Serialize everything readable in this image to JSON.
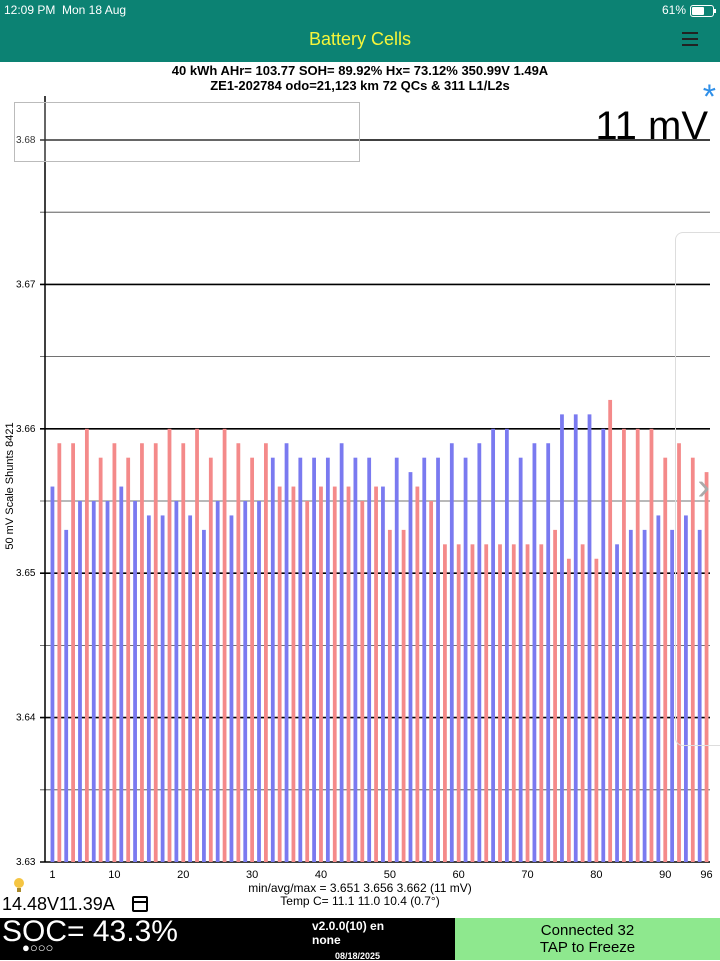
{
  "status_bar": {
    "time": "12:09 PM",
    "date": "Mon 18 Aug",
    "battery_percent": "61%"
  },
  "nav": {
    "title": "Battery Cells"
  },
  "summary": {
    "line1": "40 kWh  AHr= 103.77  SOH= 89.92%   Hx= 73.12%   350.99V 1.49A",
    "line2": "ZE1-202784 odo=21,123 km  72 QCs & 311 L1/L2s"
  },
  "mv_label": "11 mV",
  "star_icon": "asterisk-icon",
  "chart_data": {
    "type": "bar",
    "ylabel": "50 mV Scale   Shunts 8421",
    "ylim": [
      3.63,
      3.68
    ],
    "y_ticks": [
      "3.68",
      "3.67",
      "3.66",
      "3.65",
      "3.64",
      "3.63"
    ],
    "x_ticks": [
      1,
      10,
      20,
      30,
      40,
      50,
      60,
      70,
      80,
      90,
      96
    ],
    "colors": {
      "odd": "#7a7af0",
      "even": "#f48a8a"
    },
    "values": [
      3.656,
      3.659,
      3.653,
      3.659,
      3.655,
      3.66,
      3.655,
      3.658,
      3.655,
      3.659,
      3.656,
      3.658,
      3.655,
      3.659,
      3.654,
      3.659,
      3.654,
      3.66,
      3.655,
      3.659,
      3.654,
      3.66,
      3.653,
      3.658,
      3.655,
      3.66,
      3.654,
      3.659,
      3.655,
      3.658,
      3.655,
      3.659,
      3.658,
      3.656,
      3.659,
      3.656,
      3.658,
      3.655,
      3.658,
      3.656,
      3.658,
      3.656,
      3.659,
      3.656,
      3.658,
      3.655,
      3.658,
      3.656,
      3.656,
      3.653,
      3.658,
      3.653,
      3.657,
      3.656,
      3.658,
      3.655,
      3.658,
      3.652,
      3.659,
      3.652,
      3.658,
      3.652,
      3.659,
      3.652,
      3.66,
      3.652,
      3.66,
      3.652,
      3.658,
      3.652,
      3.659,
      3.652,
      3.659,
      3.653,
      3.661,
      3.651,
      3.661,
      3.652,
      3.661,
      3.651,
      3.66,
      3.662,
      3.652,
      3.66,
      3.653,
      3.66,
      3.653,
      3.66,
      3.654,
      3.658,
      3.653,
      3.659,
      3.654,
      3.658,
      3.653,
      3.657
    ]
  },
  "footer": {
    "minavgmax": "min/avg/max = 3.651  3.656  3.662  (11 mV)",
    "temp": "Temp C= 11.1   11.0   10.4  (0.7°)",
    "volt_amp": "14.48V11.39A",
    "bulb_icon": "lightbulb-icon",
    "calendar_icon": "calendar-icon"
  },
  "bottom": {
    "soc": "SOC= 43.3%",
    "dots": "●○○○",
    "version": "v2.0.0(10) en",
    "version2": "none",
    "date": "08/18/2025",
    "connected": "Connected 32",
    "tap": "TAP to Freeze"
  }
}
